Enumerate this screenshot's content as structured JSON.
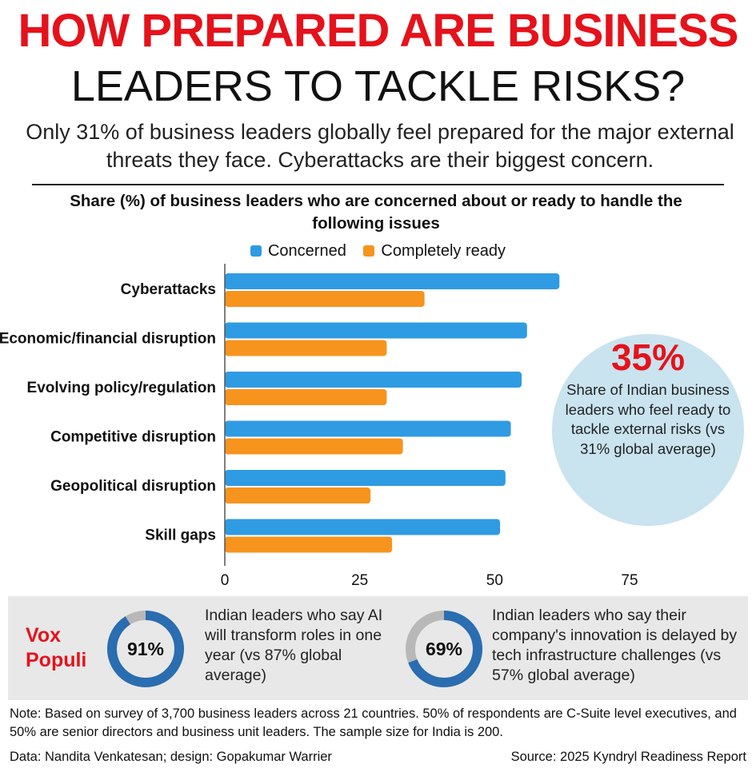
{
  "header": {
    "title_line1": "HOW PREPARED ARE BUSINESS",
    "title_line2": "LEADERS TO TACKLE RISKS?",
    "subtitle": "Only 31% of business leaders globally feel prepared for the major external threats they face. Cyberattacks are their biggest concern."
  },
  "chart_data": {
    "type": "bar",
    "orientation": "horizontal",
    "title": "Share (%) of business leaders who are concerned about or ready to handle the following issues",
    "categories": [
      "Cyberattacks",
      "Economic/financial disruption",
      "Evolving policy/regulation",
      "Competitive disruption",
      "Geopolitical disruption",
      "Skill gaps"
    ],
    "series": [
      {
        "name": "Concerned",
        "values": [
          62,
          56,
          55,
          53,
          52,
          51
        ],
        "color": "#2f9be3"
      },
      {
        "name": "Completely ready",
        "values": [
          37,
          30,
          30,
          33,
          27,
          31
        ],
        "color": "#f7941d"
      }
    ],
    "xlim": [
      0,
      75
    ],
    "xticks": [
      "0",
      "25",
      "50",
      "75"
    ],
    "legend_position": "top-center",
    "grid": false
  },
  "callout": {
    "value": "35%",
    "text": "Share of Indian business leaders who feel ready to tackle external risks (vs 31% global average)",
    "bg_color": "#c9e3ef"
  },
  "vox_populi": {
    "title": "Vox Populi",
    "stats": [
      {
        "value": "91%",
        "percent": 91,
        "text": "Indian leaders who say AI will transform roles in one year (vs 87% global average)"
      },
      {
        "value": "69%",
        "percent": 69,
        "text": "Indian leaders who say their company's innovation is delayed by tech infrastructure challenges (vs 57% global average)"
      }
    ],
    "ring_color": "#2a6db0",
    "ring_track_color": "#b8b8b8"
  },
  "footer": {
    "note": "Note: Based on survey of 3,700 business leaders across 21 countries. 50% of respondents are C-Suite level executives, and 50% are senior directors and business unit leaders. The sample size for India is 200.",
    "credit": "Data: Nandita Venkatesan; design: Gopakumar Warrier",
    "source": "Source: 2025 Kyndryl Readiness Report"
  },
  "colors": {
    "accent_red": "#e5121b",
    "concerned_blue": "#2f9be3",
    "ready_orange": "#f7941d"
  }
}
